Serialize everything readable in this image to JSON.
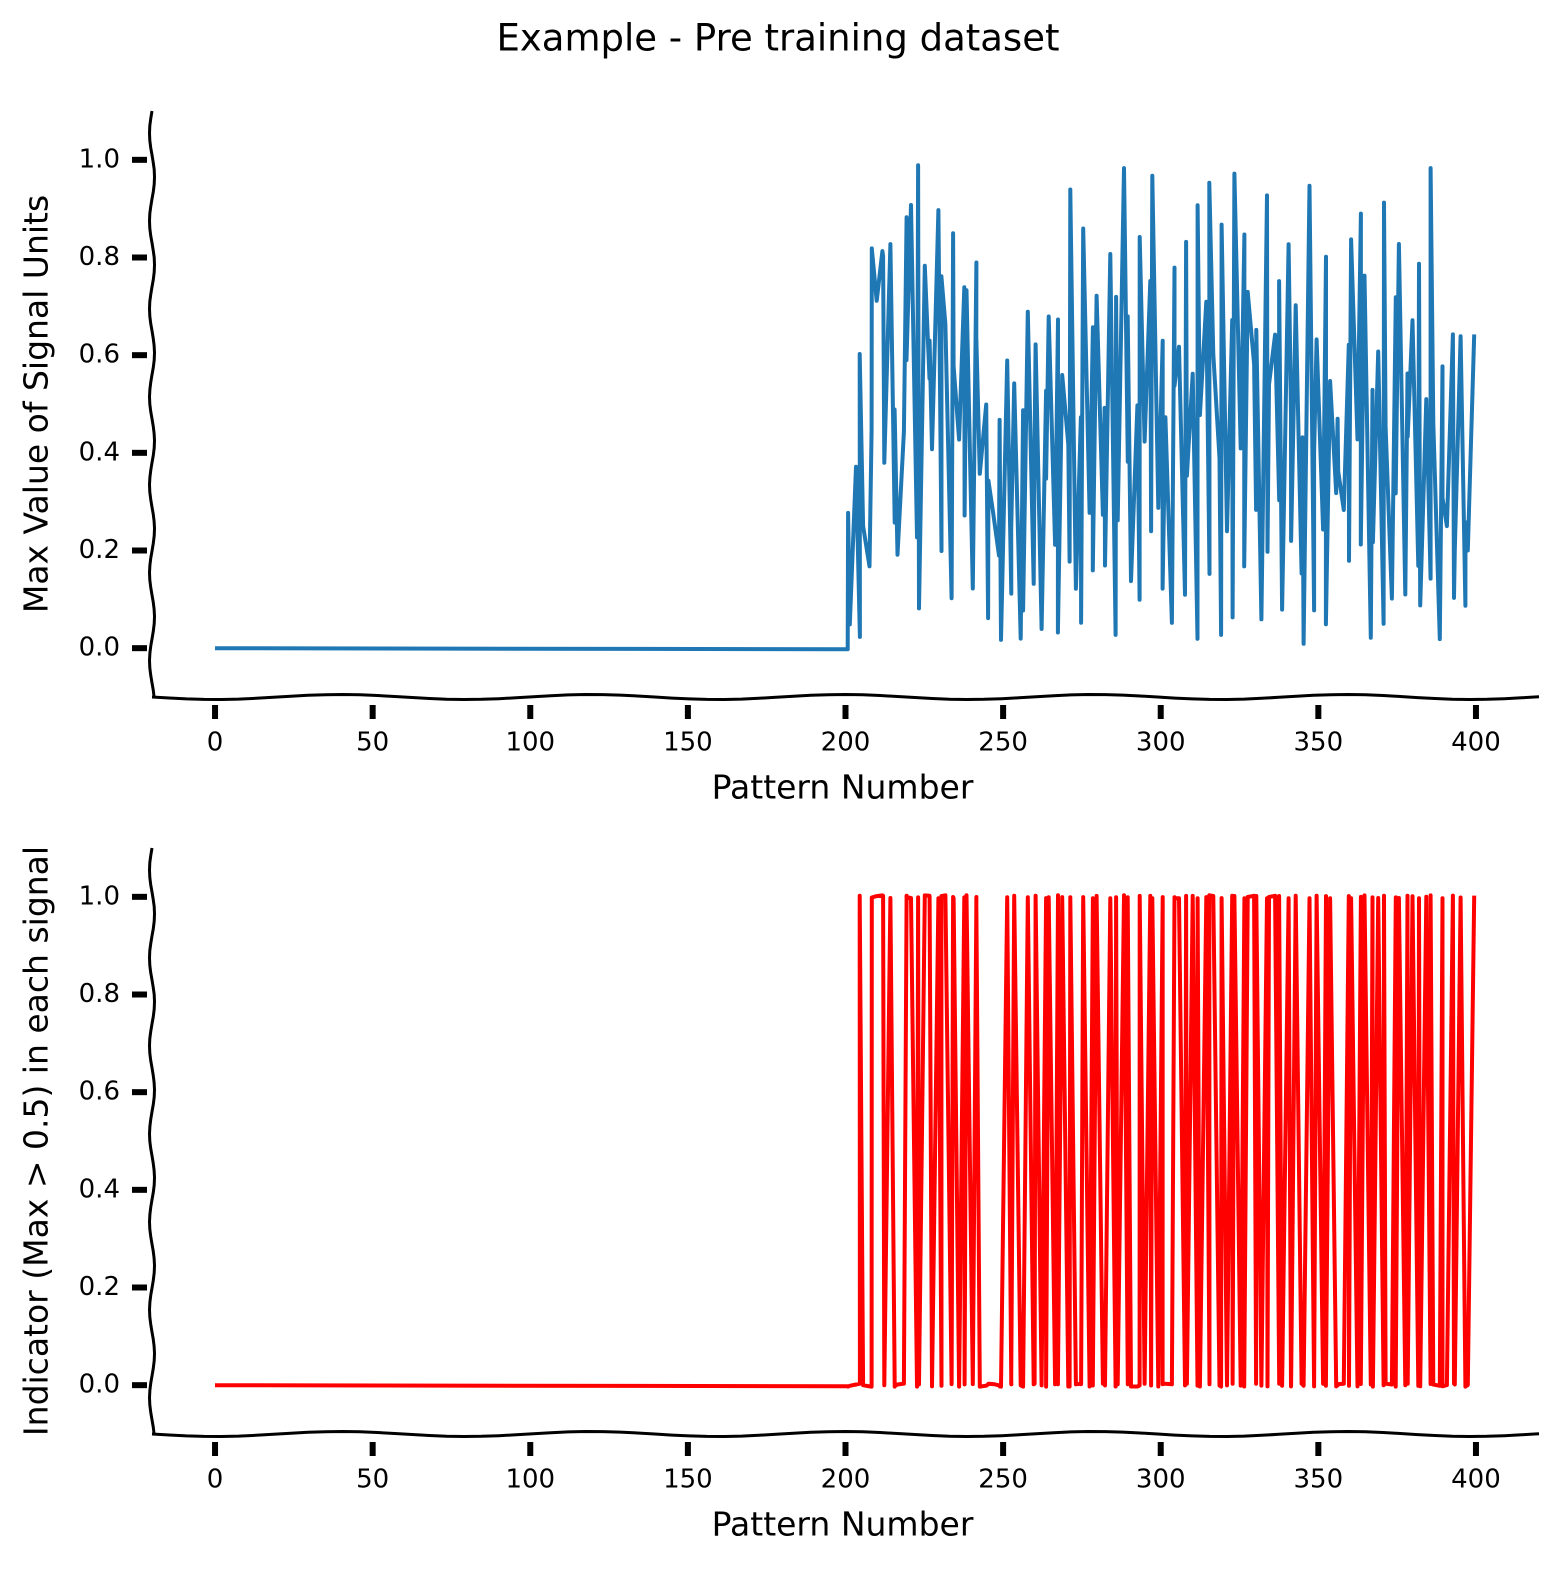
{
  "title": "Example - Pre training dataset",
  "chart_data": [
    {
      "type": "line",
      "xlabel": "Pattern Number",
      "ylabel": "Max Value of Signal Units",
      "xlim": [
        -20,
        420
      ],
      "ylim": [
        -0.1,
        1.1
      ],
      "xticks": [
        0,
        50,
        100,
        150,
        200,
        250,
        300,
        350,
        400
      ],
      "yticks": [
        {
          "value": 0,
          "label": "0.0"
        },
        0.2,
        0.4,
        0.6,
        0.8,
        {
          "value": 1,
          "label": "1.0"
        }
      ],
      "x": [
        0,
        200,
        201,
        202,
        203,
        204,
        205,
        206,
        207,
        208,
        209,
        210,
        211,
        212,
        213,
        214,
        215,
        216,
        217,
        218,
        219,
        220,
        221,
        222,
        223,
        224,
        225,
        226,
        227,
        228,
        229,
        230,
        231,
        232,
        233,
        234,
        235,
        236,
        237,
        238,
        239,
        240,
        241,
        242,
        243,
        244,
        245,
        246,
        247,
        248,
        249,
        250,
        251,
        252,
        253,
        254,
        255,
        256,
        257,
        258,
        259,
        260,
        261,
        262,
        263,
        264,
        265,
        266,
        267,
        268,
        269,
        270,
        271,
        272,
        273,
        274,
        275,
        276,
        277,
        278,
        279,
        280,
        281,
        282,
        283,
        284,
        285,
        286,
        287,
        288,
        289,
        290,
        291,
        292,
        293,
        294,
        295,
        296,
        297,
        298,
        299,
        300,
        301,
        302,
        303,
        304,
        305,
        306,
        307,
        308,
        309,
        310,
        311,
        312,
        313,
        314,
        315,
        316,
        317,
        318,
        319,
        320,
        321,
        322,
        323,
        324,
        325,
        326,
        327,
        328,
        329,
        330,
        331,
        332,
        333,
        334,
        335,
        336,
        337,
        338,
        339,
        340,
        341,
        342,
        343,
        344,
        345,
        346,
        347,
        348,
        349,
        350,
        351,
        352,
        353,
        354,
        355,
        356,
        357,
        358,
        359,
        360,
        361,
        362,
        363,
        364,
        365,
        366,
        367,
        368,
        369,
        370,
        371,
        372,
        373,
        374,
        375,
        376,
        377,
        378,
        379,
        380,
        381,
        382,
        383,
        384,
        385,
        386,
        387,
        388,
        389,
        390,
        391,
        392,
        393,
        394,
        395,
        396,
        397,
        398,
        399
      ],
      "series": [
        {
          "color": "#1f77b4",
          "values": [
            0,
            0,
            0.28,
            0.05,
            0.37,
            0.02,
            0.6,
            0.25,
            0.17,
            0.45,
            0.82,
            0.71,
            0.81,
            0.8,
            0.38,
            0.83,
            0.26,
            0.49,
            0.19,
            0.44,
            0.88,
            0.59,
            0.91,
            0.23,
            0.99,
            0.08,
            0.78,
            0.55,
            0.63,
            0.41,
            0.9,
            0.2,
            0.76,
            0.66,
            0.1,
            0.85,
            0.58,
            0.43,
            0.74,
            0.27,
            0.73,
            0.12,
            0.79,
            0.64,
            0.36,
            0.5,
            0.06,
            0.34,
            0.27,
            0.19,
            0.47,
            0.02,
            0.59,
            0.11,
            0.24,
            0.54,
            0.02,
            0.49,
            0.08,
            0.69,
            0.13,
            0.42,
            0.62,
            0.04,
            0.53,
            0.35,
            0.68,
            0.21,
            0.67,
            0.03,
            0.56,
            0.42,
            0.18,
            0.94,
            0.12,
            0.47,
            0.05,
            0.86,
            0.28,
            0.66,
            0.16,
            0.72,
            0.27,
            0.49,
            0.17,
            0.81,
            0.03,
            0.72,
            0.26,
            0.98,
            0.38,
            0.68,
            0.14,
            0.5,
            0.1,
            0.84,
            0.42,
            0.75,
            0.24,
            0.97,
            0.29,
            0.63,
            0.12,
            0.47,
            0.05,
            0.78,
            0.54,
            0.62,
            0.11,
            0.83,
            0.35,
            0.56,
            0.02,
            0.91,
            0.48,
            0.71,
            0.15,
            0.95,
            0.6,
            0.39,
            0.03,
            0.87,
            0.24,
            0.67,
            0.06,
            0.97,
            0.41,
            0.85,
            0.17,
            0.73,
            0.58,
            0.28,
            0.65,
            0.06,
            0.93,
            0.2,
            0.54,
            0.64,
            0.3,
            0.75,
            0.08,
            0.83,
            0.48,
            0.22,
            0.7,
            0.15,
            0.43,
            0.01,
            0.95,
            0.08,
            0.4,
            0.63,
            0.24,
            0.8,
            0.05,
            0.55,
            0.32,
            0.47,
            0.36,
            0.28,
            0.62,
            0.18,
            0.84,
            0.43,
            0.89,
            0.21,
            0.76,
            0.02,
            0.53,
            0.22,
            0.61,
            0.05,
            0.91,
            0.45,
            0.1,
            0.72,
            0.32,
            0.83,
            0.11,
            0.56,
            0.43,
            0.67,
            0.17,
            0.79,
            0.09,
            0.51,
            0.14,
            0.98,
            0.46,
            0.02,
            0.58,
            0.31,
            0.25,
            0.64,
            0.1,
            0.2,
            0.64,
            0.09,
            0.26,
            0.2,
            0.64
          ]
        }
      ]
    },
    {
      "type": "line",
      "xlabel": "Pattern Number",
      "ylabel": "Indicator (Max > 0.5) in each signal",
      "xlim": [
        -20,
        420
      ],
      "ylim": [
        -0.1,
        1.1
      ],
      "xticks": [
        0,
        50,
        100,
        150,
        200,
        250,
        300,
        350,
        400
      ],
      "yticks": [
        {
          "value": 0,
          "label": "0.0"
        },
        0.2,
        0.4,
        0.6,
        0.8,
        {
          "value": 1,
          "label": "1.0"
        }
      ],
      "x": [
        0,
        200,
        201,
        202,
        203,
        204,
        205,
        206,
        207,
        208,
        209,
        210,
        211,
        212,
        213,
        214,
        215,
        216,
        217,
        218,
        219,
        220,
        221,
        222,
        223,
        224,
        225,
        226,
        227,
        228,
        229,
        230,
        231,
        232,
        233,
        234,
        235,
        236,
        237,
        238,
        239,
        240,
        241,
        242,
        243,
        244,
        245,
        246,
        247,
        248,
        249,
        250,
        251,
        252,
        253,
        254,
        255,
        256,
        257,
        258,
        259,
        260,
        261,
        262,
        263,
        264,
        265,
        266,
        267,
        268,
        269,
        270,
        271,
        272,
        273,
        274,
        275,
        276,
        277,
        278,
        279,
        280,
        281,
        282,
        283,
        284,
        285,
        286,
        287,
        288,
        289,
        290,
        291,
        292,
        293,
        294,
        295,
        296,
        297,
        298,
        299,
        300,
        301,
        302,
        303,
        304,
        305,
        306,
        307,
        308,
        309,
        310,
        311,
        312,
        313,
        314,
        315,
        316,
        317,
        318,
        319,
        320,
        321,
        322,
        323,
        324,
        325,
        326,
        327,
        328,
        329,
        330,
        331,
        332,
        333,
        334,
        335,
        336,
        337,
        338,
        339,
        340,
        341,
        342,
        343,
        344,
        345,
        346,
        347,
        348,
        349,
        350,
        351,
        352,
        353,
        354,
        355,
        356,
        357,
        358,
        359,
        360,
        361,
        362,
        363,
        364,
        365,
        366,
        367,
        368,
        369,
        370,
        371,
        372,
        373,
        374,
        375,
        376,
        377,
        378,
        379,
        380,
        381,
        382,
        383,
        384,
        385,
        386,
        387,
        388,
        389,
        390,
        391,
        392,
        393,
        394,
        395,
        396,
        397,
        398,
        399
      ],
      "series": [
        {
          "color": "#ff0000",
          "values": [
            0,
            0,
            0,
            0,
            0,
            0,
            1,
            0,
            0,
            0,
            1,
            1,
            1,
            1,
            0,
            1,
            0,
            0,
            0,
            0,
            1,
            1,
            1,
            0,
            1,
            0,
            1,
            1,
            1,
            0,
            1,
            0,
            1,
            1,
            0,
            1,
            1,
            0,
            1,
            0,
            1,
            0,
            1,
            1,
            0,
            0,
            0,
            0,
            0,
            0,
            0,
            0,
            1,
            0,
            0,
            1,
            0,
            0,
            0,
            1,
            0,
            0,
            1,
            0,
            1,
            0,
            1,
            0,
            1,
            0,
            1,
            0,
            0,
            1,
            0,
            0,
            0,
            1,
            0,
            1,
            0,
            1,
            0,
            0,
            0,
            1,
            0,
            1,
            0,
            1,
            0,
            1,
            0,
            0,
            0,
            1,
            0,
            1,
            0,
            1,
            0,
            1,
            0,
            0,
            0,
            1,
            1,
            1,
            0,
            1,
            0,
            1,
            0,
            1,
            0,
            1,
            0,
            1,
            1,
            0,
            0,
            1,
            0,
            1,
            0,
            1,
            0,
            1,
            0,
            1,
            1,
            0,
            1,
            0,
            1,
            0,
            1,
            1,
            0,
            1,
            0,
            1,
            0,
            0,
            1,
            0,
            0,
            0,
            1,
            0,
            0,
            1,
            0,
            1,
            0,
            1,
            0,
            0,
            0,
            0,
            1,
            0,
            1,
            0,
            1,
            0,
            1,
            0,
            1,
            0,
            1,
            0,
            1,
            0,
            0,
            1,
            0,
            1,
            0,
            1,
            0,
            1,
            0,
            1,
            0,
            1,
            0,
            1,
            0,
            0,
            1,
            0,
            0,
            1,
            0,
            0,
            1,
            0,
            0,
            0,
            1
          ]
        }
      ]
    }
  ]
}
